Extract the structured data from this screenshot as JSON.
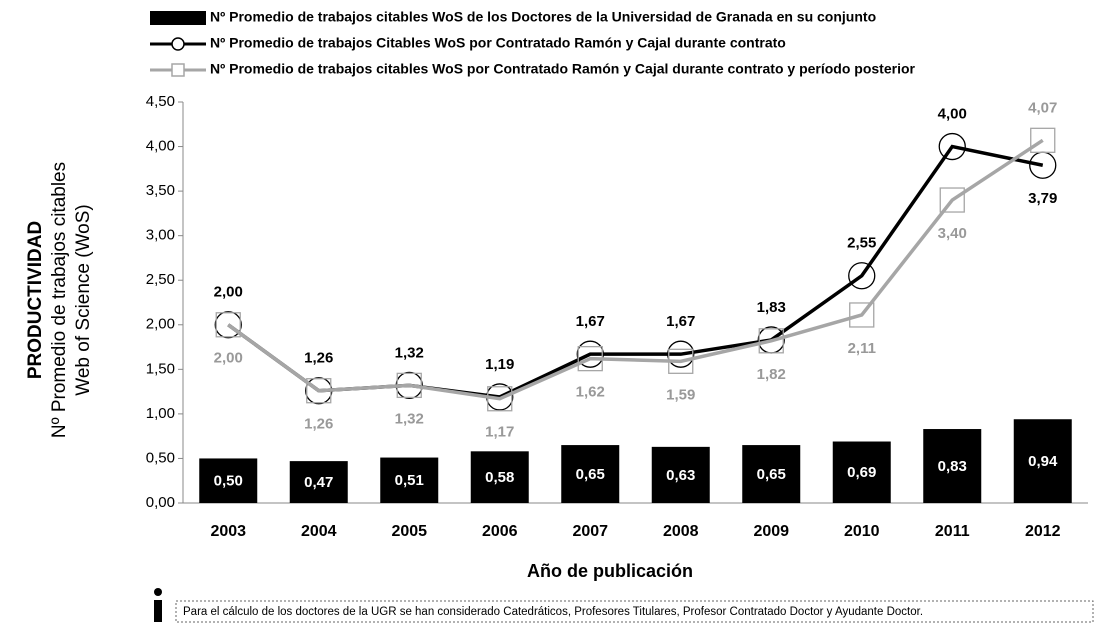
{
  "chart_data": {
    "type": "bar_line",
    "legend_position": "top",
    "ylabel": [
      "PRODUCTIVIDAD",
      "Nº Promedio de trabajos citables",
      "Web of Science (WoS)"
    ],
    "xlabel": "Año de publicación",
    "note": "Para el cálculo de los doctores de la UGR se han considerado Catedráticos, Profesores Titulares, Profesor Contratado Doctor y Ayudante Doctor.",
    "categories": [
      "2003",
      "2004",
      "2005",
      "2006",
      "2007",
      "2008",
      "2009",
      "2010",
      "2011",
      "2012"
    ],
    "ylim": [
      0,
      4.5
    ],
    "yticks": [
      {
        "value": 0,
        "label": "0,00"
      },
      {
        "value": 0.5,
        "label": "0,50"
      },
      {
        "value": 1,
        "label": "1,00"
      },
      {
        "value": 1.5,
        "label": "1,50"
      },
      {
        "value": 2,
        "label": "2,00"
      },
      {
        "value": 2.5,
        "label": "2,50"
      },
      {
        "value": 3,
        "label": "3,00"
      },
      {
        "value": 3.5,
        "label": "3,50"
      },
      {
        "value": 4,
        "label": "4,00"
      },
      {
        "value": 4.5,
        "label": "4,50"
      }
    ],
    "grid": false,
    "series": [
      {
        "name": "Nº Promedio de trabajos citables WoS de los Doctores de  la Universidad de Granada en su conjunto",
        "kind": "bar",
        "color": "#000000",
        "values": [
          0.5,
          0.47,
          0.51,
          0.58,
          0.65,
          0.63,
          0.65,
          0.69,
          0.83,
          0.94
        ],
        "value_labels": [
          "0,50",
          "0,47",
          "0,51",
          "0,58",
          "0,65",
          "0,63",
          "0,65",
          "0,69",
          "0,83",
          "0,94"
        ]
      },
      {
        "name": "Nº Promedio de trabajos Citables WoS por Contratado Ramón y Cajal durante contrato",
        "kind": "line",
        "marker": "circle",
        "color": "#000000",
        "values": [
          2.0,
          1.26,
          1.32,
          1.19,
          1.67,
          1.67,
          1.83,
          2.55,
          4.0,
          3.79
        ],
        "value_labels": [
          "2,00",
          "1,26",
          "1,32",
          "1,19",
          "1,67",
          "1,67",
          "1,83",
          "2,55",
          "4,00",
          "3,79"
        ]
      },
      {
        "name": "Nº Promedio de trabajos citables WoS por Contratado Ramón y Cajal durante contrato y período posterior",
        "kind": "line",
        "marker": "square",
        "color": "#a6a6a6",
        "values": [
          2.0,
          1.26,
          1.32,
          1.17,
          1.62,
          1.59,
          1.82,
          2.11,
          3.4,
          4.07
        ],
        "value_labels": [
          "2,00",
          "1,26",
          "1,32",
          "1,17",
          "1,62",
          "1,59",
          "1,82",
          "2,11",
          "3,40",
          "4,07"
        ]
      }
    ]
  }
}
